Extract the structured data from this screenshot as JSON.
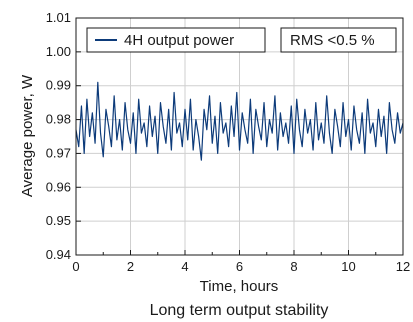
{
  "chart_data": {
    "type": "line",
    "xlabel": "Time, hours",
    "ylabel": "Average power, W",
    "caption": "Long term output stability",
    "xlim": [
      0,
      12
    ],
    "ylim": [
      0.94,
      1.01
    ],
    "xticks": [
      0,
      2,
      4,
      6,
      8,
      10,
      12
    ],
    "yticks": [
      0.94,
      0.95,
      0.96,
      0.97,
      0.98,
      0.99,
      1.0,
      1.01
    ],
    "ytick_labels": [
      "0.94",
      "0.95",
      "0.96",
      "0.97",
      "0.98",
      "0.99",
      "1.00",
      "1.01"
    ],
    "grid": true,
    "legend_position": "top-left",
    "annotation": "RMS <0.5 %",
    "series_color": "#0d3b7a",
    "series": [
      {
        "name": "4H output power",
        "x": [
          0.0,
          0.1,
          0.2,
          0.3,
          0.4,
          0.5,
          0.6,
          0.7,
          0.8,
          0.9,
          1.0,
          1.1,
          1.2,
          1.3,
          1.4,
          1.5,
          1.6,
          1.7,
          1.8,
          1.9,
          2.0,
          2.1,
          2.2,
          2.3,
          2.4,
          2.5,
          2.6,
          2.7,
          2.8,
          2.9,
          3.0,
          3.1,
          3.2,
          3.3,
          3.4,
          3.5,
          3.6,
          3.7,
          3.8,
          3.9,
          4.0,
          4.1,
          4.2,
          4.3,
          4.4,
          4.5,
          4.6,
          4.7,
          4.8,
          4.9,
          5.0,
          5.1,
          5.2,
          5.3,
          5.4,
          5.5,
          5.6,
          5.7,
          5.8,
          5.9,
          6.0,
          6.1,
          6.2,
          6.3,
          6.4,
          6.5,
          6.6,
          6.7,
          6.8,
          6.9,
          7.0,
          7.1,
          7.2,
          7.3,
          7.4,
          7.5,
          7.6,
          7.7,
          7.8,
          7.9,
          8.0,
          8.1,
          8.2,
          8.3,
          8.4,
          8.5,
          8.6,
          8.7,
          8.8,
          8.9,
          9.0,
          9.1,
          9.2,
          9.3,
          9.4,
          9.5,
          9.6,
          9.7,
          9.8,
          9.9,
          10.0,
          10.1,
          10.2,
          10.3,
          10.4,
          10.5,
          10.6,
          10.7,
          10.8,
          10.9,
          11.0,
          11.1,
          11.2,
          11.3,
          11.4,
          11.5,
          11.6,
          11.7,
          11.8,
          11.9,
          12.0
        ],
        "values": [
          0.977,
          0.972,
          0.984,
          0.97,
          0.986,
          0.975,
          0.982,
          0.973,
          0.991,
          0.976,
          0.969,
          0.983,
          0.978,
          0.972,
          0.987,
          0.974,
          0.98,
          0.971,
          0.985,
          0.977,
          0.973,
          0.982,
          0.97,
          0.986,
          0.976,
          0.979,
          0.972,
          0.984,
          0.975,
          0.981,
          0.97,
          0.985,
          0.978,
          0.973,
          0.983,
          0.971,
          0.988,
          0.976,
          0.979,
          0.972,
          0.983,
          0.974,
          0.986,
          0.971,
          0.98,
          0.975,
          0.968,
          0.983,
          0.977,
          0.987,
          0.973,
          0.981,
          0.97,
          0.985,
          0.976,
          0.979,
          0.972,
          0.984,
          0.975,
          0.988,
          0.971,
          0.982,
          0.977,
          0.973,
          0.986,
          0.97,
          0.983,
          0.978,
          0.974,
          0.985,
          0.972,
          0.98,
          0.976,
          0.987,
          0.971,
          0.982,
          0.975,
          0.979,
          0.973,
          0.984,
          0.97,
          0.986,
          0.977,
          0.972,
          0.983,
          0.976,
          0.98,
          0.971,
          0.985,
          0.974,
          0.979,
          0.973,
          0.987,
          0.976,
          0.97,
          0.983,
          0.978,
          0.972,
          0.985,
          0.975,
          0.98,
          0.971,
          0.984,
          0.977,
          0.973,
          0.982,
          0.97,
          0.986,
          0.976,
          0.979,
          0.972,
          0.983,
          0.975,
          0.981,
          0.97,
          0.985,
          0.977,
          0.973,
          0.982,
          0.976,
          0.979
        ]
      }
    ]
  }
}
